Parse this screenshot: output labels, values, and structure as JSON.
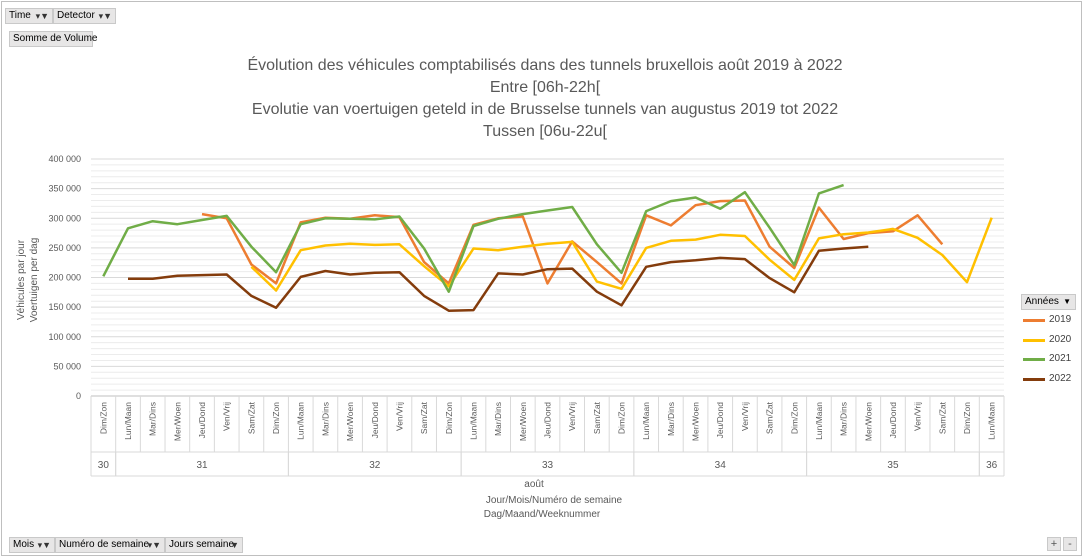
{
  "filters": {
    "time": "Time",
    "detector": "Detector",
    "value_field": "Somme de Volume",
    "mois": "Mois",
    "numero_semaine": "Numéro de semaine",
    "jours_semaine": "Jours semaine"
  },
  "legend": {
    "title": "Années",
    "items": [
      "2019",
      "2020",
      "2021",
      "2022"
    ]
  },
  "colors": {
    "2019": "#ed7d31",
    "2020": "#ffc000",
    "2021": "#70ad47",
    "2022": "#843c0c"
  },
  "icons": [
    "filter-icon",
    "dropdown-icon",
    "zoom-in-icon",
    "zoom-out-icon"
  ],
  "zoom": {
    "plus": "+",
    "minus": "-"
  },
  "chart_data": {
    "type": "line",
    "title_lines": [
      "Évolution des véhicules comptabilisés dans des tunnels bruxellois août 2019 à 2022",
      "Entre [06h-22h[",
      "Evolutie van voertuigen geteld in de Brusselse tunnels van augustus 2019 tot 2022",
      "Tussen [06u-22u["
    ],
    "ylabel": [
      "Véhicules par jour",
      "Voertuigen per dag"
    ],
    "xlabel": [
      "Jour/Mois/Numéro de semaine",
      "Dag/Maand/Weeknummer"
    ],
    "ylim": [
      0,
      400000
    ],
    "yticks": [
      "0",
      "50 000",
      "100 000",
      "150 000",
      "200 000",
      "250 000",
      "300 000",
      "350 000",
      "400 000"
    ],
    "month": "août",
    "categories": [
      "Dim/Zon",
      "Lun/Maan",
      "Mar/Dins",
      "Mer/Woen",
      "Jeu/Dond",
      "Ven/Vrij",
      "Sam/Zat",
      "Dim/Zon",
      "Lun/Maan",
      "Mar/Dins",
      "Mer/Woen",
      "Jeu/Dond",
      "Ven/Vrij",
      "Sam/Zat",
      "Dim/Zon",
      "Lun/Maan",
      "Mar/Dins",
      "Mer/Woen",
      "Jeu/Dond",
      "Ven/Vrij",
      "Sam/Zat",
      "Dim/Zon",
      "Lun/Maan",
      "Mar/Dins",
      "Mer/Woen",
      "Jeu/Dond",
      "Ven/Vrij",
      "Sam/Zat",
      "Dim/Zon",
      "Lun/Maan",
      "Mar/Dins",
      "Mer/Woen",
      "Jeu/Dond",
      "Ven/Vrij",
      "Sam/Zat",
      "Dim/Zon",
      "Lun/Maan"
    ],
    "weeks": [
      {
        "label": "30",
        "start": 0,
        "end": 0
      },
      {
        "label": "31",
        "start": 1,
        "end": 7
      },
      {
        "label": "32",
        "start": 8,
        "end": 14
      },
      {
        "label": "33",
        "start": 15,
        "end": 21
      },
      {
        "label": "34",
        "start": 22,
        "end": 28
      },
      {
        "label": "35",
        "start": 29,
        "end": 35
      },
      {
        "label": "36",
        "start": 36,
        "end": 36
      }
    ],
    "grid": true,
    "legend_position": "right",
    "series": [
      {
        "name": "2019",
        "values": [
          null,
          null,
          null,
          null,
          307000,
          300000,
          222000,
          190000,
          293000,
          301000,
          299000,
          305000,
          302000,
          226000,
          190000,
          289000,
          300000,
          303000,
          190000,
          261000,
          226000,
          190000,
          305000,
          288000,
          322000,
          329000,
          330000,
          252000,
          216000,
          318000,
          265000,
          275000,
          278000,
          305000,
          256000,
          null,
          null
        ]
      },
      {
        "name": "2020",
        "values": [
          null,
          null,
          null,
          null,
          null,
          null,
          218000,
          178000,
          246000,
          254000,
          257000,
          255000,
          256000,
          219000,
          185000,
          249000,
          246000,
          252000,
          257000,
          260000,
          193000,
          181000,
          250000,
          262000,
          264000,
          272000,
          270000,
          230000,
          196000,
          266000,
          273000,
          276000,
          282000,
          267000,
          238000,
          192000,
          301000
        ]
      },
      {
        "name": "2021",
        "values": [
          202000,
          283000,
          295000,
          290000,
          297000,
          304000,
          252000,
          209000,
          290000,
          300000,
          299000,
          298000,
          303000,
          249000,
          176000,
          287000,
          299000,
          307000,
          313000,
          319000,
          256000,
          208000,
          312000,
          329000,
          335000,
          316000,
          344000,
          284000,
          221000,
          342000,
          356000,
          null,
          null,
          null,
          null,
          null,
          null
        ]
      },
      {
        "name": "2022",
        "values": [
          null,
          198000,
          198000,
          203000,
          204000,
          205000,
          169000,
          149000,
          201000,
          211000,
          205000,
          208000,
          209000,
          169000,
          144000,
          145000,
          207000,
          205000,
          214000,
          215000,
          176000,
          153000,
          218000,
          226000,
          229000,
          233000,
          231000,
          199000,
          175000,
          245000,
          249000,
          252000,
          null,
          null,
          null,
          null,
          null
        ]
      }
    ]
  }
}
